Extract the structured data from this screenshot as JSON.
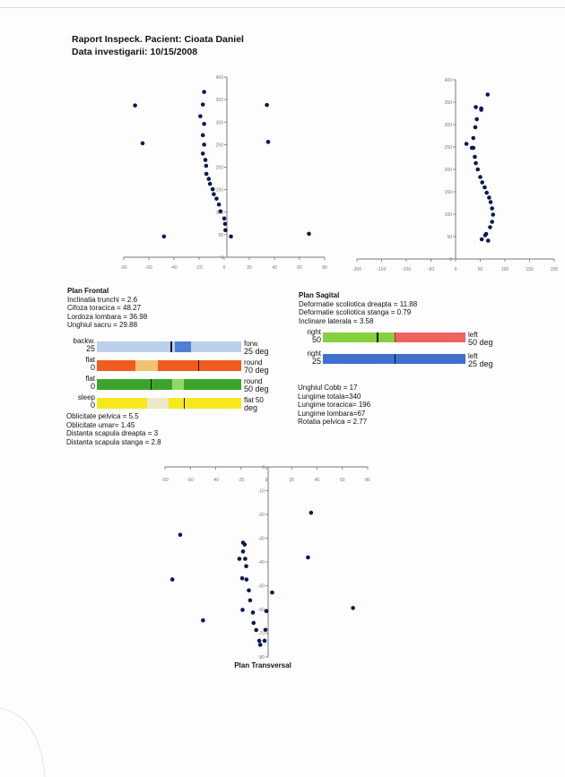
{
  "header": {
    "title": "Raport Inspeck. Pacient: Cioata  Daniel",
    "date_line": "Data investigarii: 10/15/2008"
  },
  "frontal": {
    "heading": "Plan Frontal",
    "measures": [
      "Inclinatia trunchi = 2.6",
      "Cifoza toracica = 48.27",
      "Lordoza lombara =  36.98",
      "Unghiul sacru = 29.88"
    ],
    "bars": [
      {
        "left_top": "backw.",
        "left_bottom": "25",
        "right_top": "forw.",
        "right_bottom": "25 deg",
        "base": "#bccfeb",
        "zone": "#4d80d2",
        "zone_range": [
          54,
          65
        ],
        "marker": 51
      },
      {
        "left_top": "flat",
        "left_bottom": "0",
        "right_top": "round",
        "right_bottom": "70 deg",
        "base": "#f05c1e",
        "zone": "#f0c273",
        "zone_range": [
          27,
          42
        ],
        "marker": 70
      },
      {
        "left_top": "flat",
        "left_bottom": "0",
        "right_top": "round",
        "right_bottom": "50 deg",
        "base": "#3ba52b",
        "zone": "#92d862",
        "zone_range": [
          52,
          60
        ],
        "marker": 37
      },
      {
        "left_top": "sleep",
        "left_bottom": "0",
        "right_top": "flat  50",
        "right_bottom": "deg",
        "base": "#f6e81c",
        "zone": "#ece8cb",
        "zone_range": [
          35,
          50
        ],
        "marker": 60
      }
    ],
    "measures_after": [
      "Oblicitate pelvica = 5.5",
      "Oblicitate umar= 1.45",
      "Distanta scapula dreapta = 3",
      "Distanta scapula stanga = 2.8"
    ]
  },
  "sagital": {
    "heading": "Plan Sagital",
    "measures": [
      "Deformatie scoliotica dreapta = 11.88",
      "Deformatie scoliotica stanga = 0.79",
      "Inclinare laterala = 3.58"
    ],
    "bars": [
      {
        "left_top": "right",
        "left_bottom": "50",
        "right_top": "left",
        "right_bottom": "50 deg",
        "left_color": "#86d040",
        "right_color": "#f06262",
        "split": 50,
        "marker": 38
      },
      {
        "left_top": "right",
        "left_bottom": "25",
        "right_top": "left",
        "right_bottom": "25 deg",
        "left_color": "#3f70d0",
        "right_color": "#3f70d0",
        "split": 50,
        "marker": 50
      }
    ],
    "measures_after": [
      "Unghiul Cobb = 17",
      "Lungime totala=340",
      "Lungime toracica= 196",
      "Lungime lombara=67",
      "Rotatia pelvica = 2.77"
    ]
  },
  "chart_data": [
    {
      "type": "scatter",
      "name": "frontal",
      "title": "",
      "xlim": [
        -80,
        80
      ],
      "ylim": [
        0,
        400
      ],
      "xticks": [
        -80,
        -60,
        -40,
        -20,
        0,
        20,
        40,
        60,
        80
      ],
      "yticks": [
        0,
        50,
        100,
        150,
        200,
        250,
        300,
        350,
        400
      ],
      "tick_labels_x": [
        "-80",
        "-60",
        "-40",
        "-20",
        "0",
        "20",
        "40",
        "60",
        "80"
      ],
      "tick_labels_y": [
        "0",
        "50",
        "100",
        "150",
        "200",
        "250",
        "300",
        "350",
        "400"
      ],
      "color": "#0c1850",
      "points": [
        [
          -71,
          337
        ],
        [
          -65,
          253
        ],
        [
          -48,
          46
        ],
        [
          -16,
          367
        ],
        [
          -17,
          339
        ],
        [
          -19,
          313
        ],
        [
          -16,
          296
        ],
        [
          -17,
          271
        ],
        [
          -16,
          250
        ],
        [
          -17,
          230
        ],
        [
          -15,
          216
        ],
        [
          -14.4,
          203
        ],
        [
          -14.2,
          185
        ],
        [
          -12.3,
          174
        ],
        [
          -11.3,
          163
        ],
        [
          -9.2,
          151
        ],
        [
          -8.3,
          140
        ],
        [
          -6.1,
          130
        ],
        [
          -4.2,
          117
        ],
        [
          -3,
          102
        ],
        [
          0,
          86
        ],
        [
          0.7,
          74
        ],
        [
          1,
          60
        ],
        [
          5.4,
          46
        ],
        [
          34,
          338
        ],
        [
          35,
          256
        ],
        [
          67.5,
          52
        ]
      ]
    },
    {
      "type": "scatter",
      "name": "sagital",
      "title": "",
      "xlim": [
        -200,
        200
      ],
      "ylim": [
        0,
        400
      ],
      "xticks": [
        -200,
        -150,
        -100,
        -50,
        0,
        50,
        100,
        150,
        200
      ],
      "yticks": [
        0,
        50,
        100,
        150,
        200,
        250,
        300,
        350,
        400
      ],
      "tick_labels_x": [
        "-200",
        "-150",
        "-100",
        "-50",
        "0",
        "50",
        "100",
        "150",
        "200"
      ],
      "tick_labels_y": [
        "0",
        "50",
        "100",
        "150",
        "200",
        "250",
        "300",
        "350",
        "400"
      ],
      "color": "#0c1850",
      "points": [
        [
          65,
          367
        ],
        [
          41,
          339
        ],
        [
          52,
          336
        ],
        [
          52,
          333
        ],
        [
          43,
          312
        ],
        [
          40,
          294
        ],
        [
          36,
          270
        ],
        [
          22,
          257
        ],
        [
          33,
          248
        ],
        [
          36,
          248
        ],
        [
          39,
          228
        ],
        [
          41,
          214
        ],
        [
          45,
          200
        ],
        [
          50,
          183
        ],
        [
          54,
          171
        ],
        [
          59,
          160
        ],
        [
          63,
          148
        ],
        [
          68,
          137
        ],
        [
          71,
          127
        ],
        [
          74,
          113
        ],
        [
          76,
          99
        ],
        [
          74,
          83
        ],
        [
          70,
          71
        ],
        [
          62,
          56
        ],
        [
          60,
          53
        ],
        [
          53,
          44
        ],
        [
          66,
          41
        ]
      ]
    },
    {
      "type": "scatter",
      "name": "transversal",
      "title": "Plan Transversal",
      "xlim": [
        -80,
        80
      ],
      "ylim": [
        -80,
        0
      ],
      "xticks": [
        -80,
        -60,
        -40,
        -20,
        0,
        20,
        40,
        60,
        80
      ],
      "yticks": [
        -80,
        -70,
        -60,
        -50,
        -40,
        -30,
        -20,
        -10,
        0
      ],
      "tick_labels_x": [
        "-80",
        "-60",
        "-40",
        "-20",
        "0",
        "20",
        "40",
        "60",
        "80"
      ],
      "tick_labels_y": [
        "-80",
        "-70",
        "-60",
        "-50",
        "-40",
        "-30",
        "-20",
        "-10",
        "0"
      ],
      "color": "#0c1850",
      "points": [
        [
          -68,
          -28.6
        ],
        [
          35.3,
          -19.3
        ],
        [
          -18.4,
          -31.9
        ],
        [
          -17.1,
          -32.7
        ],
        [
          -18.4,
          -35.6
        ],
        [
          -21.3,
          -38.7
        ],
        [
          -16.7,
          -38.7
        ],
        [
          -15.9,
          -41.8
        ],
        [
          32.9,
          -38.1
        ],
        [
          -74.2,
          -47.4
        ],
        [
          -19.1,
          -46.9
        ],
        [
          -15.7,
          -47.4
        ],
        [
          -13.8,
          -52
        ],
        [
          4.6,
          -52.9
        ],
        [
          -12.8,
          -56.2
        ],
        [
          -18.8,
          -60.2
        ],
        [
          -10.6,
          -61.3
        ],
        [
          0,
          -60.7
        ],
        [
          68.4,
          -59.4
        ],
        [
          -50,
          -64.6
        ],
        [
          -10.1,
          -65.7
        ],
        [
          -8,
          -68.7
        ],
        [
          -0.7,
          -68.6
        ],
        [
          -5.6,
          -73.2
        ],
        [
          -4.8,
          -74.9
        ],
        [
          -1.4,
          -73.2
        ]
      ]
    }
  ]
}
